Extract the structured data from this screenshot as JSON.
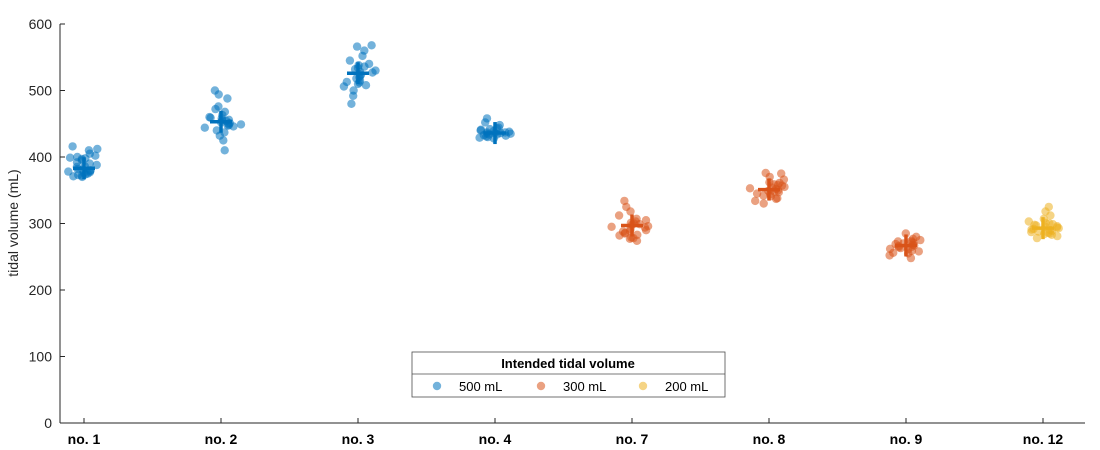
{
  "chart_data": {
    "type": "scatter",
    "ylabel": "tidal volume (mL)",
    "ylim": [
      0,
      600
    ],
    "yticks": [
      0,
      100,
      200,
      300,
      400,
      500,
      600
    ],
    "categories": [
      "no. 1",
      "no. 2",
      "no. 3",
      "no. 4",
      "no. 7",
      "no. 8",
      "no. 9",
      "no. 12"
    ],
    "legend": {
      "title": "Intended tidal volume",
      "placement": "bottom-center",
      "entries": [
        {
          "label": "500 mL",
          "color": "#0072BD"
        },
        {
          "label": "300 mL",
          "color": "#D95319"
        },
        {
          "label": "200 mL",
          "color": "#EDB120"
        }
      ]
    },
    "subjects": [
      {
        "category": "no. 1",
        "group": 0,
        "mean": 383,
        "values": [
          380,
          378,
          374,
          372,
          370,
          375,
          385,
          392,
          398,
          402,
          410,
          416,
          412,
          405,
          397,
          388,
          381,
          377,
          373,
          379,
          386,
          390,
          395,
          400,
          382,
          376,
          371,
          399
        ]
      },
      {
        "category": "no. 2",
        "group": 0,
        "mean": 453,
        "values": [
          410,
          425,
          432,
          440,
          446,
          450,
          452,
          455,
          458,
          460,
          463,
          468,
          476,
          488,
          500,
          494,
          472,
          449,
          447,
          451,
          454,
          444,
          437,
          456,
          459,
          448
        ]
      },
      {
        "category": "no. 3",
        "group": 0,
        "mean": 526,
        "values": [
          480,
          492,
          500,
          508,
          512,
          515,
          520,
          524,
          528,
          532,
          536,
          540,
          545,
          552,
          560,
          568,
          566,
          530,
          534,
          538,
          510,
          506,
          513,
          518,
          527,
          522
        ]
      },
      {
        "category": "no. 4",
        "group": 0,
        "mean": 436,
        "values": [
          428,
          430,
          432,
          434,
          435,
          436,
          437,
          438,
          440,
          442,
          444,
          448,
          452,
          458,
          433,
          436,
          439,
          441,
          429,
          431,
          443,
          437,
          435,
          434
        ]
      },
      {
        "category": "no. 7",
        "group": 1,
        "mean": 297,
        "values": [
          274,
          278,
          282,
          285,
          288,
          290,
          292,
          295,
          298,
          300,
          303,
          307,
          312,
          318,
          325,
          334,
          279,
          286,
          294,
          299,
          301,
          296,
          289,
          283,
          277,
          305
        ]
      },
      {
        "category": "no. 8",
        "group": 1,
        "mean": 351,
        "values": [
          330,
          334,
          338,
          342,
          345,
          348,
          350,
          352,
          355,
          358,
          362,
          366,
          370,
          376,
          337,
          344,
          349,
          353,
          357,
          361,
          341,
          347,
          354,
          359,
          375
        ]
      },
      {
        "category": "no. 9",
        "group": 1,
        "mean": 267,
        "values": [
          248,
          252,
          256,
          259,
          262,
          264,
          266,
          268,
          270,
          272,
          274,
          277,
          280,
          285,
          258,
          263,
          267,
          271,
          275,
          261,
          265,
          269,
          273,
          255
        ]
      },
      {
        "category": "no. 12",
        "group": 2,
        "mean": 293,
        "values": [
          278,
          281,
          284,
          286,
          288,
          290,
          292,
          294,
          296,
          298,
          300,
          303,
          307,
          312,
          318,
          325,
          285,
          289,
          293,
          297,
          301,
          287,
          291,
          295,
          299,
          283
        ]
      }
    ]
  }
}
